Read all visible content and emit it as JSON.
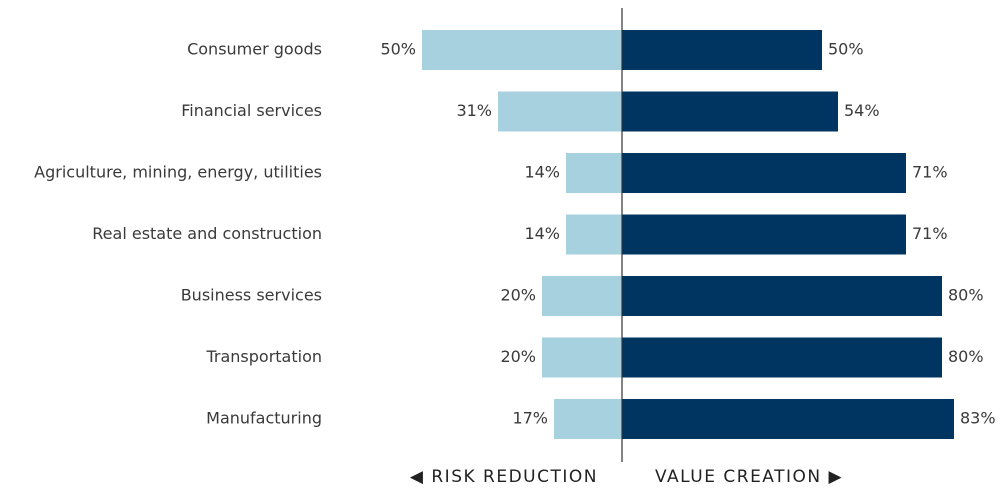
{
  "chart_data": {
    "type": "diverging_bar",
    "categories": [
      "Consumer goods",
      "Financial services",
      "Agriculture, mining, energy, utilities",
      "Real estate and construction",
      "Business services",
      "Transportation",
      "Manufacturing"
    ],
    "series": [
      {
        "name": "◀ RISK REDUCTION",
        "color": "#a7d1de",
        "values": [
          50,
          31,
          14,
          14,
          20,
          20,
          17
        ],
        "value_labels": [
          "50%",
          "31%",
          "14%",
          "14%",
          "20%",
          "20%",
          "17%"
        ]
      },
      {
        "name": "VALUE CREATION ▶",
        "color": "#003461",
        "values": [
          50,
          54,
          71,
          71,
          80,
          80,
          83
        ],
        "value_labels": [
          "50%",
          "54%",
          "71%",
          "71%",
          "80%",
          "80%",
          "83%"
        ]
      }
    ]
  }
}
